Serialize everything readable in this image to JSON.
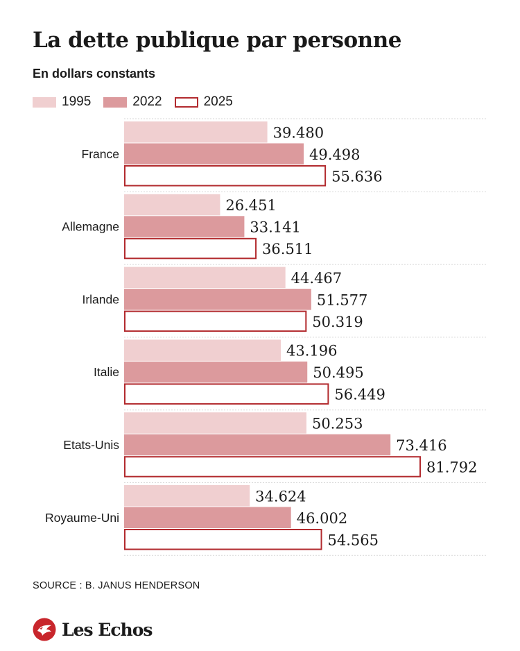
{
  "header": {
    "title": "La dette publique par personne",
    "subtitle": "En dollars constants"
  },
  "legend": [
    {
      "label": "1995",
      "color": "#f0cfd0",
      "style": "fill"
    },
    {
      "label": "2022",
      "color": "#dc9a9d",
      "style": "fill"
    },
    {
      "label": "2025",
      "color": "#b22a2e",
      "style": "outline"
    }
  ],
  "chart_data": {
    "type": "bar",
    "orientation": "horizontal",
    "title": "La dette publique par personne",
    "subtitle": "En dollars constants",
    "categories": [
      "France",
      "Allemagne",
      "Irlande",
      "Italie",
      "Etats-Unis",
      "Royaume-Uni"
    ],
    "series": [
      {
        "name": "1995",
        "values": [
          39480,
          26451,
          44467,
          43196,
          50253,
          34624
        ],
        "labels": [
          "39.480",
          "26.451",
          "44.467",
          "43.196",
          "50.253",
          "34.624"
        ]
      },
      {
        "name": "2022",
        "values": [
          49498,
          33141,
          51577,
          50495,
          73416,
          46002
        ],
        "labels": [
          "49.498",
          "33.141",
          "51.577",
          "50.495",
          "73.416",
          "46.002"
        ]
      },
      {
        "name": "2025",
        "values": [
          55636,
          36511,
          50319,
          56449,
          81792,
          54565
        ],
        "labels": [
          "55.636",
          "36.511",
          "50.319",
          "56.449",
          "81.792",
          "54.565"
        ]
      }
    ],
    "xlim": [
      0,
      81792
    ],
    "grid": false,
    "legend_position": "top-left",
    "data_labels": true
  },
  "footer": {
    "source": "SOURCE : B. JANUS HENDERSON",
    "brand": "Les Echos"
  },
  "colors": {
    "separator": "#d7d7d7",
    "text": "#1a1a1a",
    "brand_red": "#c8262c"
  }
}
